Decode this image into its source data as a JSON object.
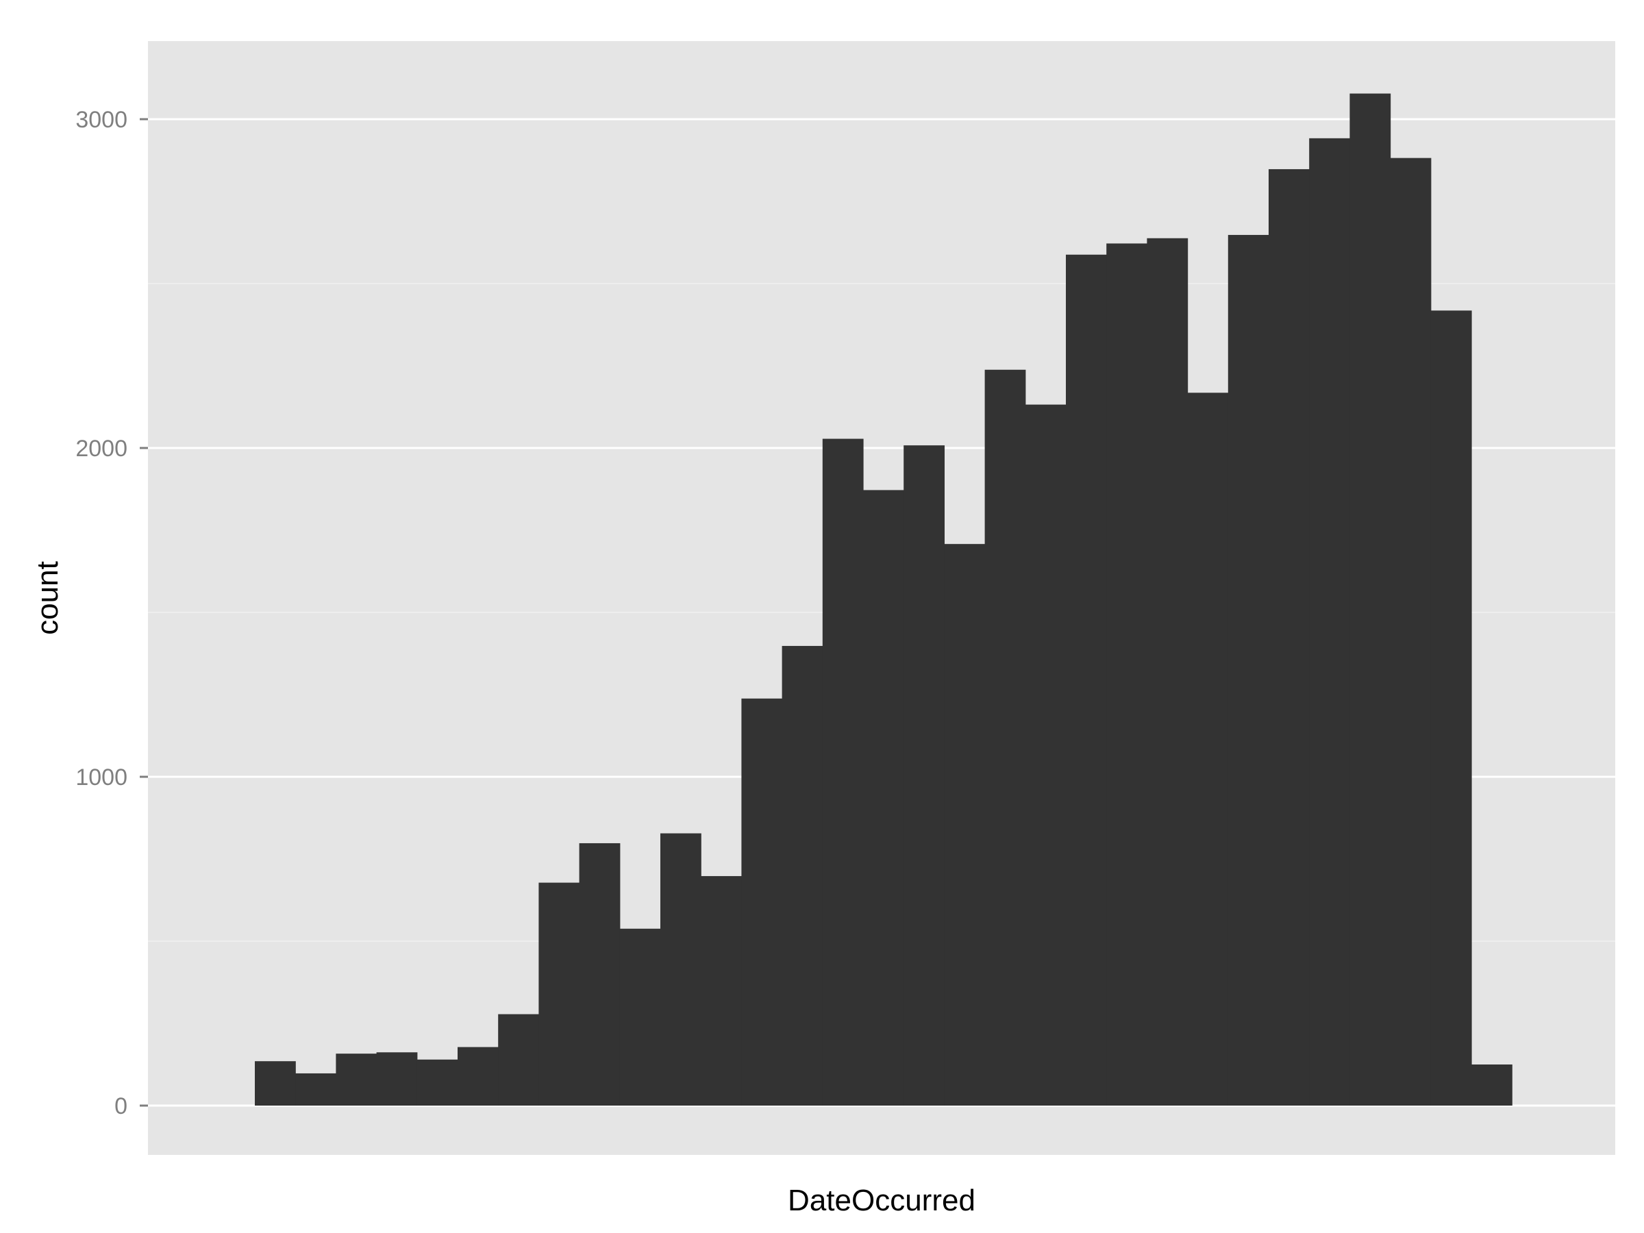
{
  "chart_data": {
    "type": "bar",
    "title": "",
    "xlabel": "DateOccurred",
    "ylabel": "count",
    "ylim": [
      0,
      3200
    ],
    "y_ticks": [
      "0",
      "1000",
      "2000",
      "3000"
    ],
    "values": [
      135,
      98,
      158,
      162,
      140,
      178,
      278,
      678,
      798,
      538,
      828,
      698,
      1238,
      1398,
      2028,
      1872,
      2008,
      1708,
      2238,
      2132,
      2588,
      2622,
      2638,
      2168,
      2648,
      2848,
      2942,
      3078,
      2882,
      2418,
      125
    ],
    "grid": true,
    "legend": "none",
    "colors": {
      "bar": "#333333",
      "panel": "#e5e5e5",
      "grid_major": "#ffffff",
      "grid_minor": "#f2f2f2"
    }
  }
}
